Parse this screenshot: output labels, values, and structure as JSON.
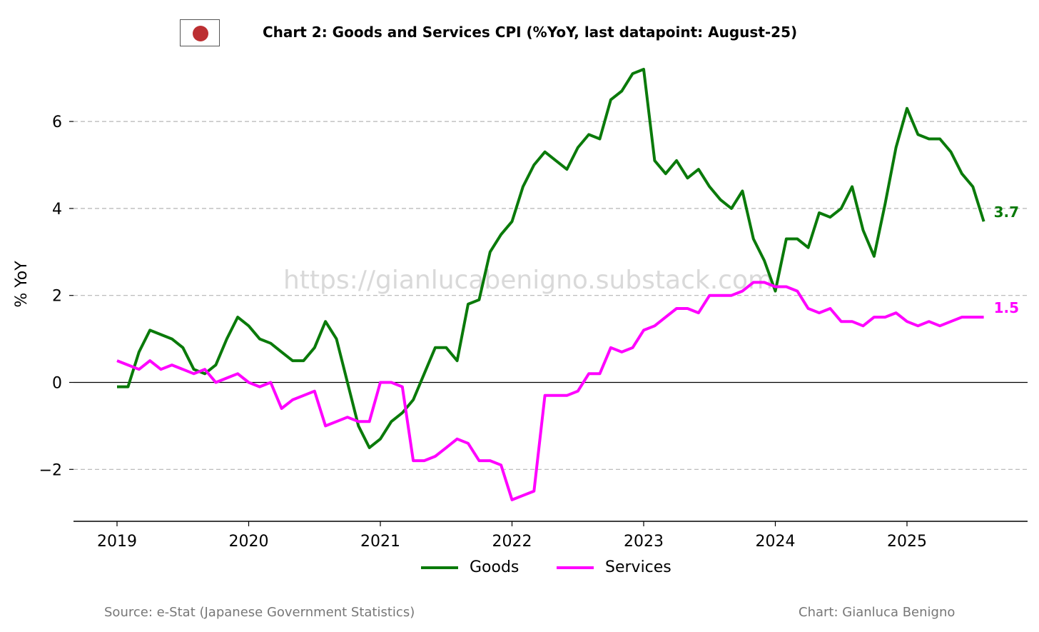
{
  "chart_data": {
    "type": "line",
    "title": "Chart 2: Goods and Services CPI (%YoY, last datapoint: August-25)",
    "ylabel": "% YoY",
    "xlabel": "",
    "ylim": [
      -3.2,
      7.3
    ],
    "yticks": [
      -2,
      0,
      2,
      4,
      6
    ],
    "ytick_labels": [
      "−2",
      "0",
      "2",
      "4",
      "6"
    ],
    "xticks": [
      2019,
      2020,
      2021,
      2022,
      2023,
      2024,
      2025
    ],
    "xtick_labels": [
      "2019",
      "2020",
      "2021",
      "2022",
      "2023",
      "2024",
      "2025"
    ],
    "start": "2019-01",
    "frequency": "monthly",
    "grid": "horizontal dashed",
    "watermark": "https://gianlucabenigno.substack.com",
    "series": [
      {
        "name": "Goods",
        "color": "#0a7a0a",
        "end_label": "3.7",
        "values": [
          -0.1,
          -0.1,
          0.7,
          1.2,
          1.1,
          1.0,
          0.8,
          0.3,
          0.2,
          0.4,
          1.0,
          1.5,
          1.3,
          1.0,
          0.9,
          0.7,
          0.5,
          0.5,
          0.8,
          1.4,
          1.0,
          0.0,
          -1.0,
          -1.5,
          -1.3,
          -0.9,
          -0.7,
          -0.4,
          0.2,
          0.8,
          0.8,
          0.5,
          1.8,
          1.9,
          3.0,
          3.4,
          3.7,
          4.5,
          5.0,
          5.3,
          5.1,
          4.9,
          5.4,
          5.7,
          5.6,
          6.5,
          6.7,
          7.1,
          7.2,
          5.1,
          4.8,
          5.1,
          4.7,
          4.9,
          4.5,
          4.2,
          4.0,
          4.4,
          3.3,
          2.8,
          2.1,
          3.3,
          3.3,
          3.1,
          3.9,
          3.8,
          4.0,
          4.5,
          3.5,
          2.9,
          4.1,
          5.4,
          6.3,
          5.7,
          5.6,
          5.6,
          5.3,
          4.8,
          4.5,
          3.7
        ]
      },
      {
        "name": "Services",
        "color": "#ff00ff",
        "end_label": "1.5",
        "values": [
          0.5,
          0.4,
          0.3,
          0.5,
          0.3,
          0.4,
          0.3,
          0.2,
          0.3,
          0.0,
          0.1,
          0.2,
          0.0,
          -0.1,
          0.0,
          -0.6,
          -0.4,
          -0.3,
          -0.2,
          -1.0,
          -0.9,
          -0.8,
          -0.9,
          -0.9,
          0.0,
          0.0,
          -0.1,
          -1.8,
          -1.8,
          -1.7,
          -1.5,
          -1.3,
          -1.4,
          -1.8,
          -1.8,
          -1.9,
          -2.7,
          -2.6,
          -2.5,
          -0.3,
          -0.3,
          -0.3,
          -0.2,
          0.2,
          0.2,
          0.8,
          0.7,
          0.8,
          1.2,
          1.3,
          1.5,
          1.7,
          1.7,
          1.6,
          2.0,
          2.0,
          2.0,
          2.1,
          2.3,
          2.3,
          2.2,
          2.2,
          2.1,
          1.7,
          1.6,
          1.7,
          1.4,
          1.4,
          1.3,
          1.5,
          1.5,
          1.6,
          1.4,
          1.3,
          1.4,
          1.3,
          1.4,
          1.5,
          1.5,
          1.5
        ]
      }
    ],
    "legend": [
      "Goods",
      "Services"
    ],
    "legend_position": "bottom-center"
  },
  "footer": {
    "source": "Source: e-Stat (Japanese Government Statistics)",
    "credit": "Chart: Gianluca Benigno"
  },
  "flag": {
    "name": "japan-flag-icon",
    "color": "#bc2f32"
  }
}
